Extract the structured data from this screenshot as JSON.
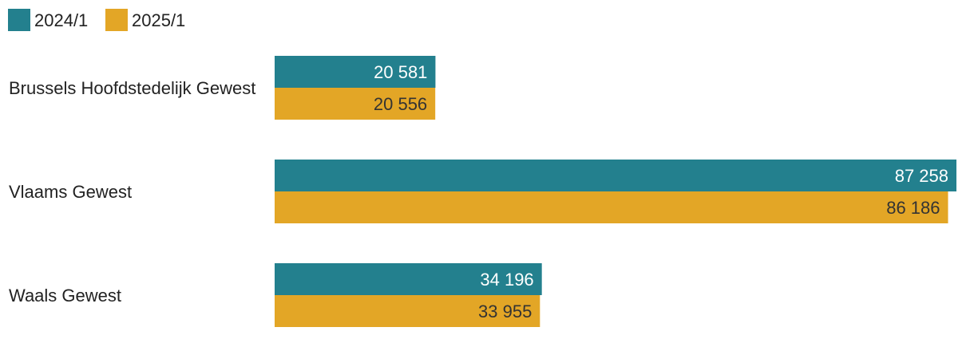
{
  "chart_data": {
    "type": "bar",
    "orientation": "horizontal",
    "categories": [
      "Brussels Hoofdstedelijk Gewest",
      "Vlaams Gewest",
      "Waals Gewest"
    ],
    "series": [
      {
        "name": "2024/1",
        "color": "#23808E",
        "values": [
          20581,
          87258,
          34196
        ],
        "labels": [
          "20 581",
          "87 258",
          "34 196"
        ]
      },
      {
        "name": "2025/1",
        "color": "#E3A626",
        "values": [
          20556,
          86186,
          33955
        ],
        "labels": [
          "20 556",
          "86 186",
          "33 955"
        ]
      }
    ],
    "xlim": [
      0,
      87258
    ],
    "grid": false,
    "legend_position": "top-left",
    "data_label_colors": {
      "2024/1": "#ffffff",
      "2025/1": "#333333"
    }
  }
}
